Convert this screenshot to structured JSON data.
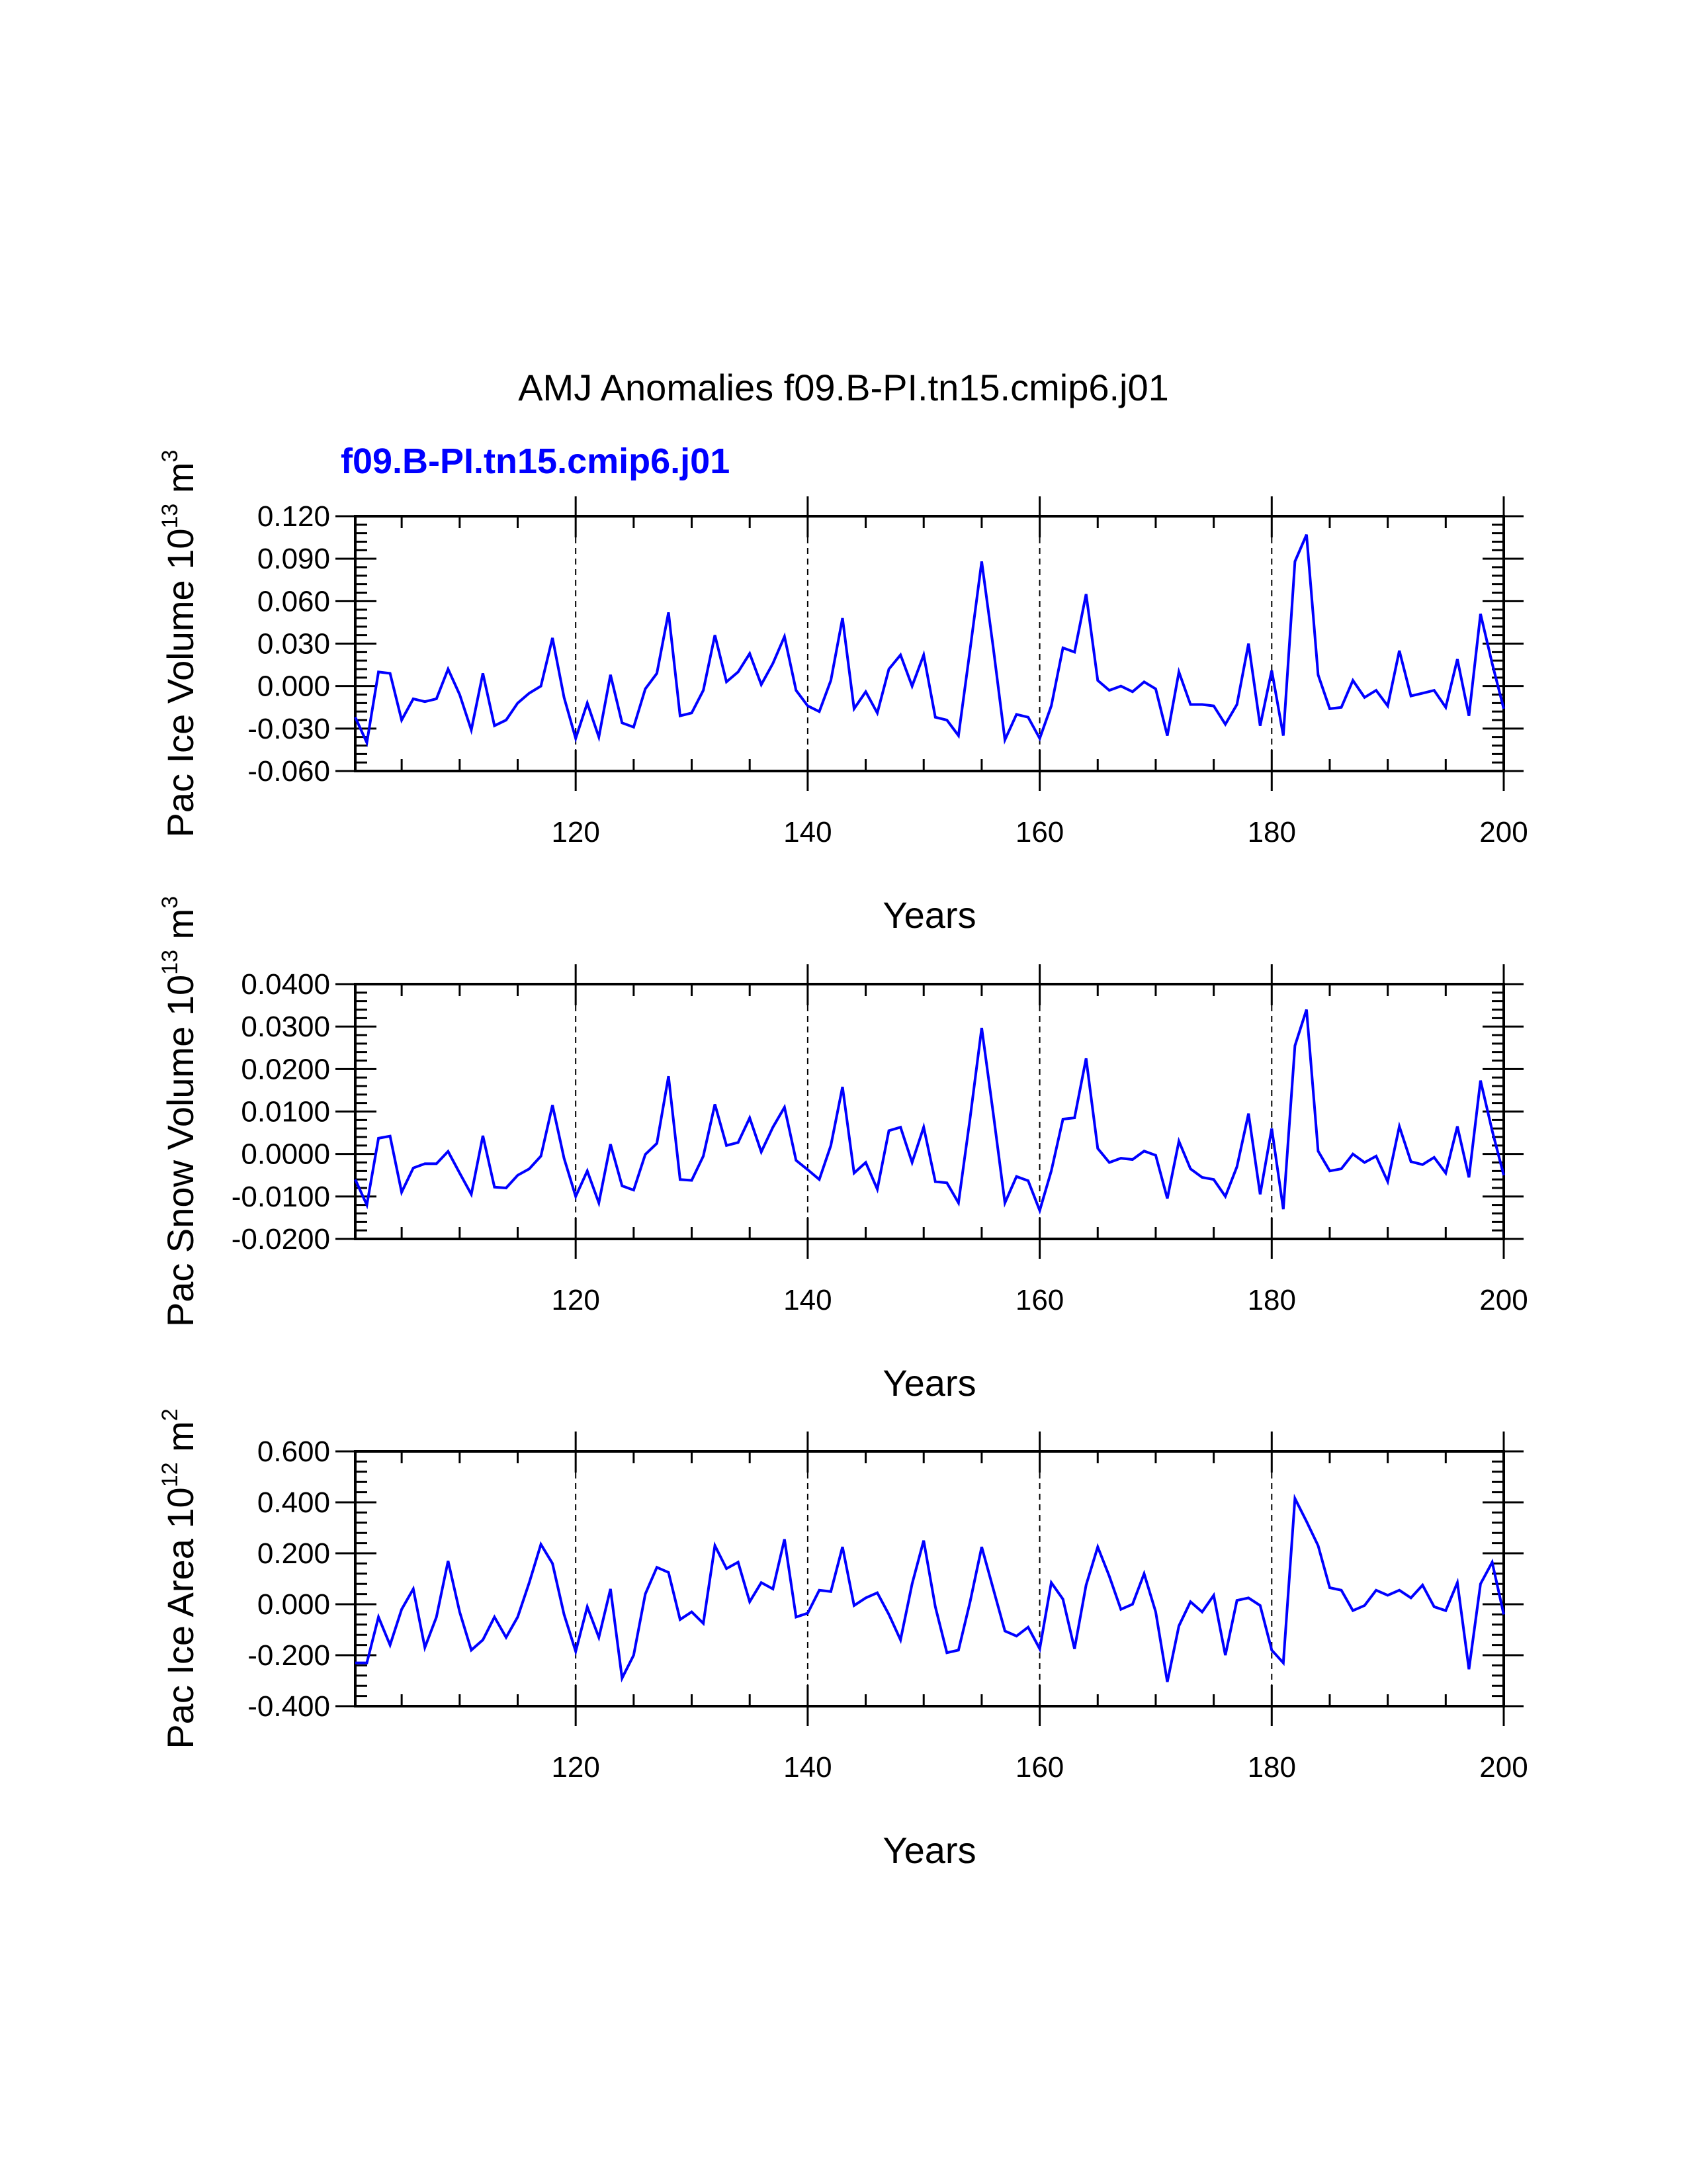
{
  "colors": {
    "series": "#0000ff",
    "axes": "#000000",
    "case_label": "#0000ff",
    "background": "#ffffff"
  },
  "figure": {
    "title": "AMJ Anomalies f09.B-PI.tn15.cmip6.j01",
    "case_label": "f09.B-PI.tn15.cmip6.j01"
  },
  "chart_data": [
    {
      "type": "line",
      "id": "ice-volume",
      "ylabel": {
        "base": "Pac Ice Volume 10",
        "exp": "13",
        "unit": " m",
        "unit_exp": "3"
      },
      "xlabel": "Years",
      "xlim": [
        101,
        200
      ],
      "ylim": [
        -0.06,
        0.12
      ],
      "xticks": [
        120,
        140,
        160,
        180,
        200
      ],
      "xtick_labels": [
        "120",
        "140",
        "160",
        "180",
        "200"
      ],
      "yticks": [
        -0.06,
        -0.03,
        0.0,
        0.03,
        0.06,
        0.09,
        0.12
      ],
      "ytick_labels": [
        "-0.060",
        "-0.030",
        "0.000",
        "0.030",
        "0.060",
        "0.090",
        "0.120"
      ],
      "vlines": [
        120,
        140,
        160,
        180
      ],
      "x_start": 101,
      "series": [
        {
          "name": "f09.B-PI.tn15.cmip6.j01",
          "values": [
            -0.022,
            -0.04,
            0.01,
            0.009,
            -0.024,
            -0.009,
            -0.011,
            -0.009,
            0.012,
            -0.006,
            -0.031,
            0.009,
            -0.028,
            -0.024,
            -0.012,
            -0.005,
            0.0,
            0.034,
            -0.008,
            -0.037,
            -0.012,
            -0.036,
            0.008,
            -0.026,
            -0.029,
            -0.002,
            0.009,
            0.052,
            -0.021,
            -0.019,
            -0.003,
            0.036,
            0.003,
            0.01,
            0.023,
            0.001,
            0.016,
            0.035,
            -0.003,
            -0.014,
            -0.018,
            0.004,
            0.048,
            -0.016,
            -0.004,
            -0.019,
            0.012,
            0.022,
            0.0,
            0.022,
            -0.022,
            -0.024,
            -0.035,
            0.026,
            0.088,
            0.027,
            -0.038,
            -0.02,
            -0.022,
            -0.037,
            -0.014,
            0.027,
            0.024,
            0.065,
            0.004,
            -0.003,
            0.0,
            -0.004,
            0.003,
            -0.002,
            -0.035,
            0.01,
            -0.013,
            -0.013,
            -0.014,
            -0.027,
            -0.013,
            0.03,
            -0.028,
            0.011,
            -0.035,
            0.088,
            0.107,
            0.008,
            -0.016,
            -0.015,
            0.004,
            -0.008,
            -0.003,
            -0.014,
            0.025,
            -0.007,
            -0.005,
            -0.003,
            -0.015,
            0.019,
            -0.021,
            0.051,
            0.016,
            -0.016
          ]
        }
      ]
    },
    {
      "type": "line",
      "id": "snow-volume",
      "ylabel": {
        "base": "Pac Snow Volume 10",
        "exp": "13",
        "unit": " m",
        "unit_exp": "3"
      },
      "xlabel": "Years",
      "xlim": [
        101,
        200
      ],
      "ylim": [
        -0.02,
        0.04
      ],
      "xticks": [
        120,
        140,
        160,
        180,
        200
      ],
      "xtick_labels": [
        "120",
        "140",
        "160",
        "180",
        "200"
      ],
      "yticks": [
        -0.02,
        -0.01,
        0.0,
        0.01,
        0.02,
        0.03,
        0.04
      ],
      "ytick_labels": [
        "-0.0200",
        "-0.0100",
        "0.0000",
        "0.0100",
        "0.0200",
        "0.0300",
        "0.0400"
      ],
      "vlines": [
        120,
        140,
        160,
        180
      ],
      "x_start": 101,
      "series": [
        {
          "name": "f09.B-PI.tn15.cmip6.j01",
          "values": [
            -0.006,
            -0.012,
            0.0037,
            0.0042,
            -0.009,
            -0.0033,
            -0.0023,
            -0.0023,
            0.0006,
            -0.0045,
            -0.0095,
            0.0043,
            -0.0078,
            -0.008,
            -0.005,
            -0.0035,
            -0.0005,
            0.0115,
            -0.001,
            -0.01,
            -0.004,
            -0.0115,
            0.0023,
            -0.0075,
            -0.0085,
            -0.0001,
            0.0025,
            0.0183,
            -0.006,
            -0.0062,
            -0.0005,
            0.0117,
            0.002,
            0.0027,
            0.0085,
            0.0005,
            0.0063,
            0.011,
            -0.0015,
            -0.0037,
            -0.006,
            0.002,
            0.0158,
            -0.0045,
            -0.002,
            -0.0083,
            0.0055,
            0.0063,
            -0.002,
            0.0063,
            -0.0065,
            -0.0068,
            -0.0115,
            0.0085,
            0.0297,
            0.0095,
            -0.0115,
            -0.0053,
            -0.0063,
            -0.0133,
            -0.004,
            0.0082,
            0.0085,
            0.0225,
            0.0013,
            -0.002,
            -0.001,
            -0.0013,
            0.0007,
            -0.0003,
            -0.0105,
            0.003,
            -0.0035,
            -0.0055,
            -0.006,
            -0.01,
            -0.003,
            0.0095,
            -0.0095,
            0.006,
            -0.013,
            0.0255,
            0.034,
            0.0007,
            -0.004,
            -0.0035,
            0.0,
            -0.002,
            -0.0005,
            -0.0065,
            0.0065,
            -0.0018,
            -0.0025,
            -0.0008,
            -0.0045,
            0.0065,
            -0.0055,
            0.0173,
            0.0055,
            -0.005
          ]
        }
      ]
    },
    {
      "type": "line",
      "id": "ice-area",
      "ylabel": {
        "base": "Pac Ice Area 10",
        "exp": "12",
        "unit": " m",
        "unit_exp": "2"
      },
      "xlabel": "Years",
      "xlim": [
        101,
        200
      ],
      "ylim": [
        -0.4,
        0.6
      ],
      "xticks": [
        120,
        140,
        160,
        180,
        200
      ],
      "xtick_labels": [
        "120",
        "140",
        "160",
        "180",
        "200"
      ],
      "yticks": [
        -0.4,
        -0.2,
        0.0,
        0.2,
        0.4,
        0.6
      ],
      "ytick_labels": [
        "-0.400",
        "-0.200",
        "0.000",
        "0.200",
        "0.400",
        "0.600"
      ],
      "vlines": [
        120,
        140,
        160,
        180
      ],
      "x_start": 101,
      "series": [
        {
          "name": "f09.B-PI.tn15.cmip6.j01",
          "values": [
            -0.23,
            -0.23,
            -0.05,
            -0.16,
            -0.02,
            0.06,
            -0.17,
            -0.05,
            0.17,
            -0.03,
            -0.18,
            -0.14,
            -0.05,
            -0.13,
            -0.05,
            0.085,
            0.235,
            0.16,
            -0.04,
            -0.185,
            -0.01,
            -0.13,
            0.06,
            -0.29,
            -0.2,
            0.04,
            0.145,
            0.125,
            -0.06,
            -0.03,
            -0.075,
            0.23,
            0.14,
            0.165,
            0.01,
            0.085,
            0.06,
            0.255,
            -0.05,
            -0.035,
            0.055,
            0.05,
            0.225,
            -0.005,
            0.025,
            0.045,
            -0.04,
            -0.14,
            0.08,
            0.25,
            -0.01,
            -0.19,
            -0.18,
            0.01,
            0.225,
            0.06,
            -0.105,
            -0.125,
            -0.09,
            -0.175,
            0.085,
            0.02,
            -0.175,
            0.075,
            0.225,
            0.11,
            -0.02,
            0.0,
            0.12,
            -0.03,
            -0.305,
            -0.085,
            0.01,
            -0.03,
            0.035,
            -0.2,
            0.015,
            0.025,
            -0.005,
            -0.18,
            -0.23,
            0.415,
            0.325,
            0.23,
            0.065,
            0.055,
            -0.025,
            -0.005,
            0.055,
            0.035,
            0.055,
            0.025,
            0.075,
            -0.01,
            -0.025,
            0.085,
            -0.255,
            0.08,
            0.165,
            -0.04
          ]
        }
      ]
    }
  ]
}
